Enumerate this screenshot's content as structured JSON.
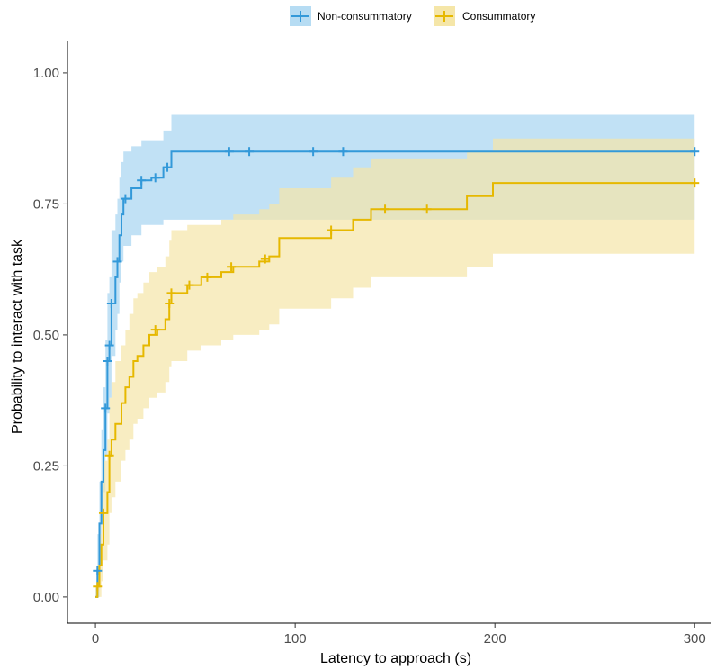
{
  "chart_data": {
    "type": "line",
    "title": "",
    "xlabel": "Latency to approach (s)",
    "ylabel": "Probability to interact with task",
    "xlim": [
      -14,
      308
    ],
    "ylim": [
      -0.05,
      1.06
    ],
    "x_ticks": [
      0,
      100,
      200,
      300
    ],
    "x_tick_labels": [
      "0",
      "100",
      "200",
      "300"
    ],
    "y_ticks": [
      0,
      0.25,
      0.5,
      0.75,
      1.0
    ],
    "y_tick_labels": [
      "0.00",
      "0.25",
      "0.50",
      "0.75",
      "1.00"
    ],
    "grid": false,
    "legend_position": "top",
    "series": [
      {
        "name": "Non-consummatory",
        "color": "#3399d9",
        "fill_color": "#b6dcf3",
        "steps": [
          [
            0,
            0.0
          ],
          [
            1,
            0.05
          ],
          [
            2,
            0.14
          ],
          [
            3,
            0.22
          ],
          [
            4,
            0.28
          ],
          [
            5,
            0.36
          ],
          [
            6,
            0.45
          ],
          [
            7,
            0.48
          ],
          [
            8,
            0.56
          ],
          [
            10,
            0.61
          ],
          [
            11,
            0.64
          ],
          [
            12,
            0.69
          ],
          [
            13,
            0.73
          ],
          [
            14,
            0.76
          ],
          [
            18,
            0.78
          ],
          [
            23,
            0.795
          ],
          [
            28,
            0.8
          ],
          [
            34,
            0.82
          ],
          [
            38,
            0.85
          ],
          [
            300,
            0.85
          ]
        ],
        "lower": [
          [
            0,
            0.0
          ],
          [
            1,
            0.0
          ],
          [
            2,
            0.07
          ],
          [
            3,
            0.14
          ],
          [
            4,
            0.2
          ],
          [
            5,
            0.27
          ],
          [
            6,
            0.35
          ],
          [
            7,
            0.38
          ],
          [
            8,
            0.46
          ],
          [
            10,
            0.51
          ],
          [
            11,
            0.54
          ],
          [
            12,
            0.6
          ],
          [
            13,
            0.64
          ],
          [
            14,
            0.67
          ],
          [
            18,
            0.69
          ],
          [
            23,
            0.71
          ],
          [
            28,
            0.71
          ],
          [
            34,
            0.72
          ],
          [
            38,
            0.72
          ],
          [
            300,
            0.72
          ]
        ],
        "upper": [
          [
            0,
            0.02
          ],
          [
            1,
            0.12
          ],
          [
            2,
            0.22
          ],
          [
            3,
            0.32
          ],
          [
            4,
            0.4
          ],
          [
            5,
            0.49
          ],
          [
            6,
            0.58
          ],
          [
            7,
            0.61
          ],
          [
            8,
            0.7
          ],
          [
            10,
            0.73
          ],
          [
            11,
            0.76
          ],
          [
            12,
            0.8
          ],
          [
            13,
            0.83
          ],
          [
            14,
            0.85
          ],
          [
            18,
            0.86
          ],
          [
            23,
            0.87
          ],
          [
            28,
            0.87
          ],
          [
            34,
            0.89
          ],
          [
            38,
            0.92
          ],
          [
            300,
            0.92
          ]
        ],
        "censor_marks": [
          [
            1,
            0.05
          ],
          [
            5,
            0.36
          ],
          [
            6,
            0.45
          ],
          [
            7,
            0.48
          ],
          [
            8,
            0.56
          ],
          [
            11,
            0.64
          ],
          [
            15,
            0.76
          ],
          [
            23,
            0.795
          ],
          [
            30,
            0.8
          ],
          [
            36,
            0.82
          ],
          [
            67,
            0.85
          ],
          [
            77,
            0.85
          ],
          [
            109,
            0.85
          ],
          [
            124,
            0.85
          ],
          [
            300,
            0.85
          ]
        ]
      },
      {
        "name": "Consummatory",
        "color": "#e6b800",
        "fill_color": "#f5e6a8",
        "steps": [
          [
            0,
            0.0
          ],
          [
            1,
            0.02
          ],
          [
            2,
            0.06
          ],
          [
            3,
            0.1
          ],
          [
            4,
            0.16
          ],
          [
            6,
            0.2
          ],
          [
            7,
            0.27
          ],
          [
            8,
            0.3
          ],
          [
            10,
            0.33
          ],
          [
            13,
            0.37
          ],
          [
            15,
            0.4
          ],
          [
            17,
            0.42
          ],
          [
            19,
            0.45
          ],
          [
            21,
            0.46
          ],
          [
            24,
            0.48
          ],
          [
            27,
            0.5
          ],
          [
            31,
            0.51
          ],
          [
            35,
            0.53
          ],
          [
            37,
            0.56
          ],
          [
            38,
            0.58
          ],
          [
            46,
            0.595
          ],
          [
            53,
            0.61
          ],
          [
            63,
            0.62
          ],
          [
            69,
            0.63
          ],
          [
            82,
            0.64
          ],
          [
            87,
            0.65
          ],
          [
            92,
            0.685
          ],
          [
            118,
            0.7
          ],
          [
            129,
            0.72
          ],
          [
            138,
            0.74
          ],
          [
            186,
            0.765
          ],
          [
            199,
            0.79
          ],
          [
            300,
            0.79
          ]
        ],
        "lower": [
          [
            0,
            0.0
          ],
          [
            1,
            0.0
          ],
          [
            2,
            0.0
          ],
          [
            3,
            0.03
          ],
          [
            4,
            0.07
          ],
          [
            6,
            0.1
          ],
          [
            7,
            0.16
          ],
          [
            8,
            0.19
          ],
          [
            10,
            0.22
          ],
          [
            13,
            0.26
          ],
          [
            15,
            0.28
          ],
          [
            17,
            0.3
          ],
          [
            19,
            0.33
          ],
          [
            21,
            0.34
          ],
          [
            24,
            0.36
          ],
          [
            27,
            0.38
          ],
          [
            31,
            0.39
          ],
          [
            35,
            0.41
          ],
          [
            37,
            0.44
          ],
          [
            38,
            0.45
          ],
          [
            46,
            0.47
          ],
          [
            53,
            0.48
          ],
          [
            63,
            0.49
          ],
          [
            69,
            0.5
          ],
          [
            82,
            0.51
          ],
          [
            87,
            0.52
          ],
          [
            92,
            0.55
          ],
          [
            118,
            0.57
          ],
          [
            129,
            0.59
          ],
          [
            138,
            0.61
          ],
          [
            186,
            0.63
          ],
          [
            199,
            0.655
          ],
          [
            300,
            0.655
          ]
        ],
        "upper": [
          [
            0,
            0.02
          ],
          [
            1,
            0.06
          ],
          [
            2,
            0.12
          ],
          [
            3,
            0.18
          ],
          [
            4,
            0.26
          ],
          [
            6,
            0.3
          ],
          [
            7,
            0.38
          ],
          [
            8,
            0.41
          ],
          [
            10,
            0.45
          ],
          [
            13,
            0.48
          ],
          [
            15,
            0.51
          ],
          [
            17,
            0.54
          ],
          [
            19,
            0.57
          ],
          [
            21,
            0.58
          ],
          [
            24,
            0.6
          ],
          [
            27,
            0.62
          ],
          [
            31,
            0.63
          ],
          [
            35,
            0.65
          ],
          [
            37,
            0.68
          ],
          [
            38,
            0.7
          ],
          [
            46,
            0.71
          ],
          [
            53,
            0.71
          ],
          [
            63,
            0.72
          ],
          [
            69,
            0.73
          ],
          [
            82,
            0.74
          ],
          [
            87,
            0.75
          ],
          [
            92,
            0.78
          ],
          [
            118,
            0.8
          ],
          [
            129,
            0.82
          ],
          [
            138,
            0.835
          ],
          [
            186,
            0.85
          ],
          [
            199,
            0.875
          ],
          [
            300,
            0.875
          ]
        ],
        "censor_marks": [
          [
            1,
            0.02
          ],
          [
            4,
            0.16
          ],
          [
            7,
            0.27
          ],
          [
            30,
            0.51
          ],
          [
            37,
            0.56
          ],
          [
            38,
            0.58
          ],
          [
            47,
            0.595
          ],
          [
            56,
            0.61
          ],
          [
            68,
            0.63
          ],
          [
            85,
            0.645
          ],
          [
            118,
            0.7
          ],
          [
            145,
            0.74
          ],
          [
            166,
            0.74
          ],
          [
            300,
            0.79
          ]
        ]
      }
    ]
  }
}
